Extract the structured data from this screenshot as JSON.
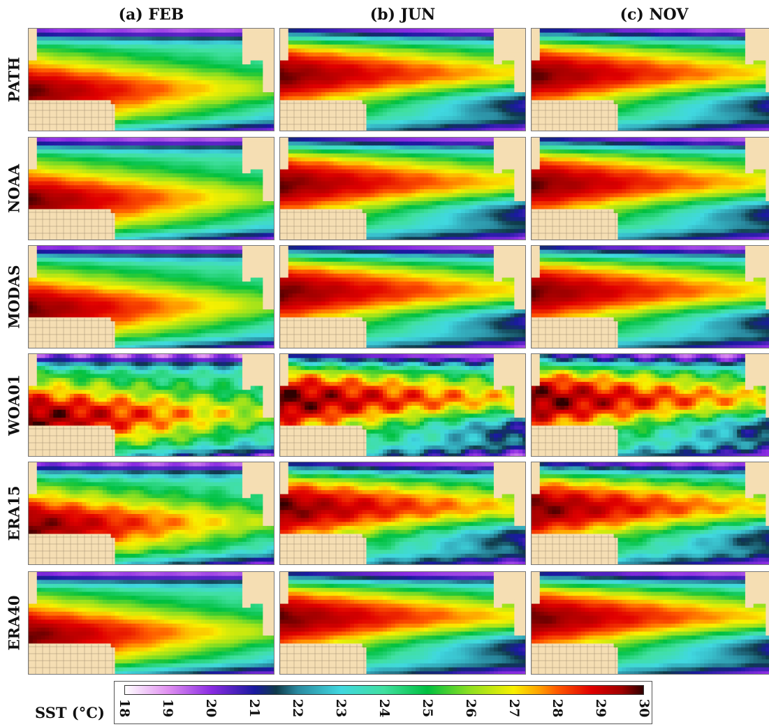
{
  "columns": [
    "(a) FEB",
    "(b) JUN",
    "(c) NOV"
  ],
  "rows": [
    "PATH",
    "NOAA",
    "MODAS",
    "WOA01",
    "ERA15",
    "ERA40"
  ],
  "colorbar": {
    "label": "SST (°C)",
    "ticks": [
      "18",
      "19",
      "20",
      "21",
      "22",
      "23",
      "24",
      "25",
      "26",
      "27",
      "28",
      "29",
      "30"
    ],
    "range": [
      18,
      30
    ],
    "stops": [
      {
        "value": 18,
        "color": "#ffffff"
      },
      {
        "value": 19,
        "color": "#e090f0"
      },
      {
        "value": 20,
        "color": "#8a2be2"
      },
      {
        "value": 21,
        "color": "#1a1aa0"
      },
      {
        "value": 21.5,
        "color": "#0f3a4a"
      },
      {
        "value": 22,
        "color": "#2a8aa0"
      },
      {
        "value": 23,
        "color": "#40d8e0"
      },
      {
        "value": 24,
        "color": "#40e0a0"
      },
      {
        "value": 25,
        "color": "#00c040"
      },
      {
        "value": 26,
        "color": "#90e020"
      },
      {
        "value": 27,
        "color": "#f8f000"
      },
      {
        "value": 27.6,
        "color": "#ffa000"
      },
      {
        "value": 28,
        "color": "#ff5a00"
      },
      {
        "value": 28.8,
        "color": "#e00000"
      },
      {
        "value": 29.5,
        "color": "#a00000"
      },
      {
        "value": 30,
        "color": "#300000"
      }
    ]
  },
  "colors": {
    "land": "#f5deb3",
    "grid": "#5a4a3a",
    "coast": "#222222"
  }
}
